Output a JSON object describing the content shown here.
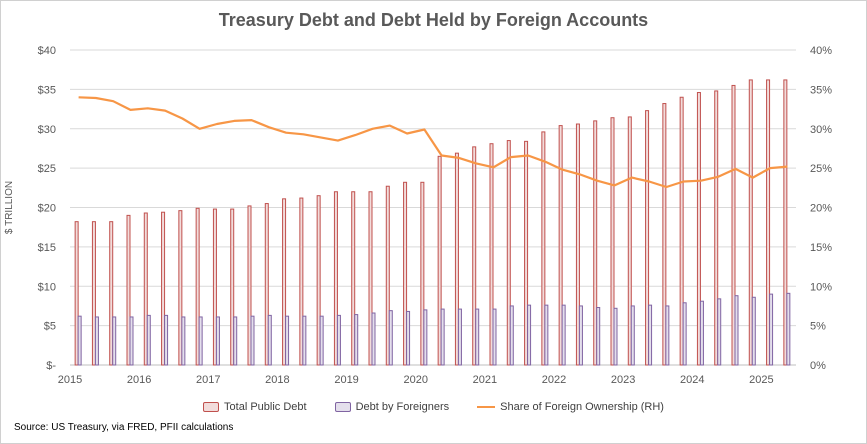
{
  "chart_data": {
    "type": "bar",
    "title": "Treasury Debt and Debt Held by Foreign Accounts",
    "ylabel": "$ TRILLION",
    "y2label": "",
    "ylim": [
      0,
      40
    ],
    "y2lim": [
      0,
      40
    ],
    "yticks": [
      "$-",
      "$5",
      "$10",
      "$15",
      "$20",
      "$25",
      "$30",
      "$35",
      "$40"
    ],
    "y2ticks": [
      "0%",
      "5%",
      "10%",
      "15%",
      "20%",
      "25%",
      "30%",
      "35%",
      "40%"
    ],
    "xticks": [
      "2015",
      "2016",
      "2017",
      "2018",
      "2019",
      "2020",
      "2021",
      "2022",
      "2023",
      "2024",
      "2025"
    ],
    "x": [
      "2015Q1",
      "2015Q2",
      "2015Q3",
      "2015Q4",
      "2016Q1",
      "2016Q2",
      "2016Q3",
      "2016Q4",
      "2017Q1",
      "2017Q2",
      "2017Q3",
      "2017Q4",
      "2018Q1",
      "2018Q2",
      "2018Q3",
      "2018Q4",
      "2019Q1",
      "2019Q2",
      "2019Q3",
      "2019Q4",
      "2020Q1",
      "2020Q2",
      "2020Q3",
      "2020Q4",
      "2021Q1",
      "2021Q2",
      "2021Q3",
      "2021Q4",
      "2022Q1",
      "2022Q2",
      "2022Q3",
      "2022Q4",
      "2023Q1",
      "2023Q2",
      "2023Q3",
      "2023Q4",
      "2024Q1",
      "2024Q2",
      "2024Q3",
      "2024Q4",
      "2025Q1",
      "2025Q2"
    ],
    "series": [
      {
        "name": "Total Public Debt",
        "kind": "bar",
        "axis": "left",
        "color": "#c0504d",
        "values": [
          18.2,
          18.2,
          18.2,
          19.0,
          19.3,
          19.4,
          19.6,
          19.9,
          19.8,
          19.8,
          20.2,
          20.5,
          21.1,
          21.2,
          21.5,
          22.0,
          22.0,
          22.0,
          22.7,
          23.2,
          23.2,
          26.5,
          26.9,
          27.7,
          28.1,
          28.5,
          28.4,
          29.6,
          30.4,
          30.6,
          31.0,
          31.4,
          31.5,
          32.3,
          33.2,
          34.0,
          34.6,
          34.8,
          35.5,
          36.2,
          36.2,
          36.2
        ]
      },
      {
        "name": "Debt by Foreigners",
        "kind": "bar",
        "axis": "left",
        "color": "#8064a2",
        "values": [
          6.2,
          6.1,
          6.1,
          6.1,
          6.3,
          6.3,
          6.1,
          6.1,
          6.1,
          6.1,
          6.2,
          6.3,
          6.2,
          6.2,
          6.2,
          6.3,
          6.4,
          6.6,
          6.9,
          6.8,
          7.0,
          7.1,
          7.1,
          7.1,
          7.1,
          7.5,
          7.6,
          7.6,
          7.6,
          7.5,
          7.3,
          7.2,
          7.5,
          7.6,
          7.5,
          7.9,
          8.1,
          8.4,
          8.8,
          8.6,
          9.0,
          9.1
        ]
      },
      {
        "name": "Share of Foreign Ownership (RH)",
        "kind": "line",
        "axis": "right",
        "color": "#f79646",
        "values": [
          34.0,
          33.9,
          33.5,
          32.4,
          32.6,
          32.3,
          31.3,
          30.0,
          30.6,
          31.0,
          31.1,
          30.2,
          29.5,
          29.3,
          28.9,
          28.5,
          29.2,
          30.0,
          30.4,
          29.4,
          29.9,
          26.6,
          26.3,
          25.6,
          25.1,
          26.4,
          26.6,
          25.8,
          24.8,
          24.2,
          23.4,
          22.8,
          23.8,
          23.3,
          22.6,
          23.3,
          23.4,
          23.9,
          24.9,
          23.8,
          25.0,
          25.2
        ]
      }
    ],
    "legend": "bottom"
  },
  "footer": {
    "source": "Source: US Treasury, via FRED, PFII calculations"
  }
}
